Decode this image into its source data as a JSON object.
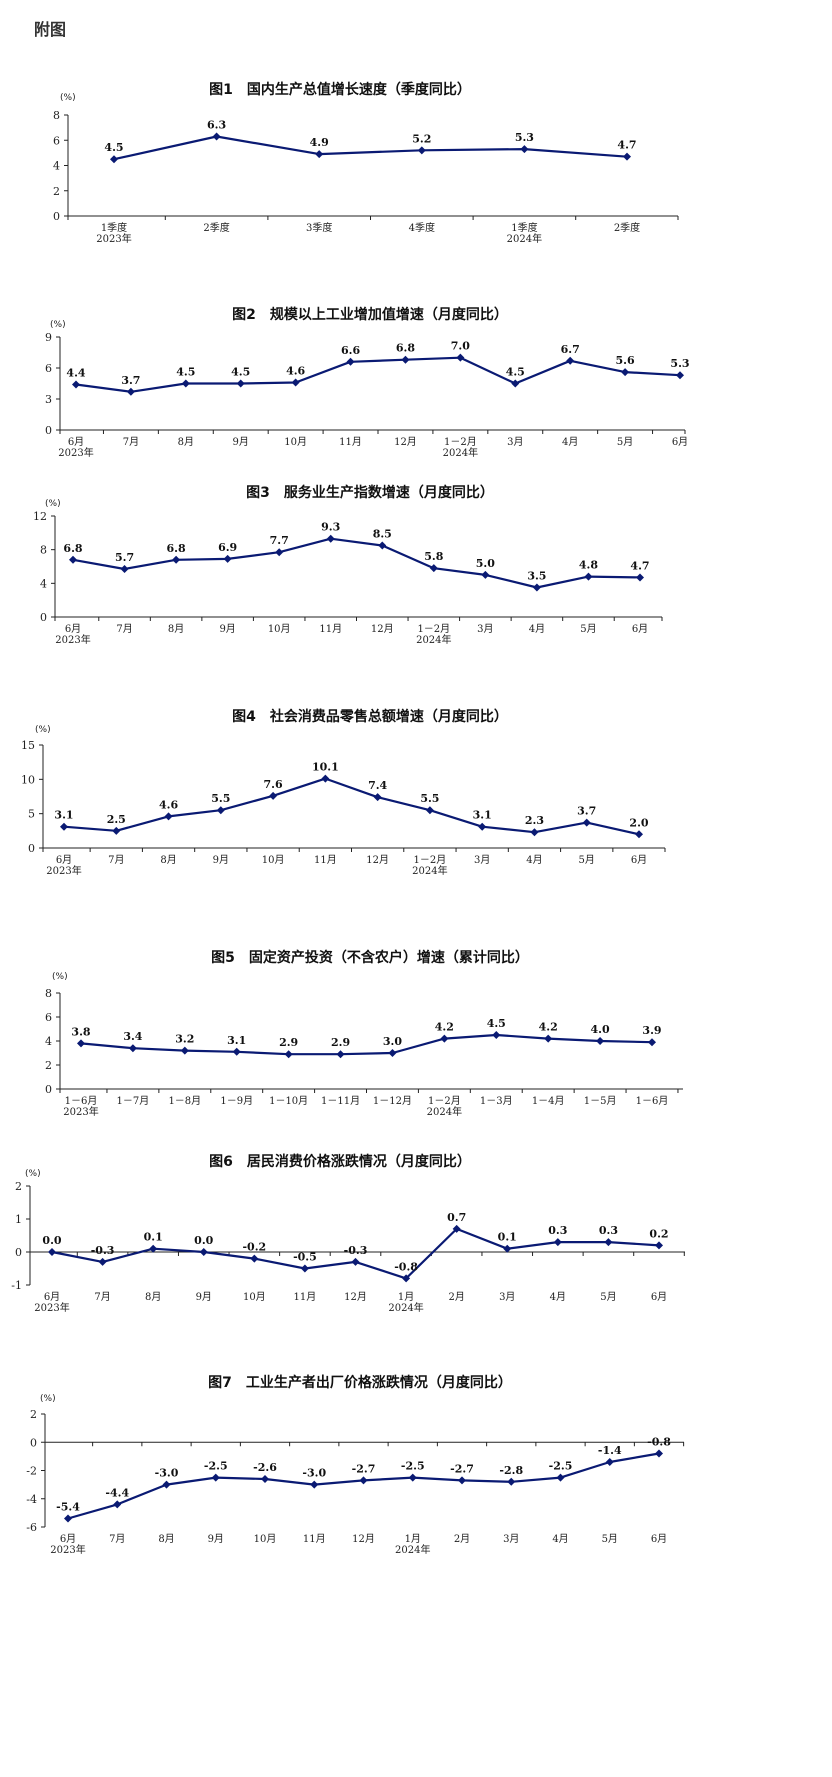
{
  "page_title": "附图",
  "style": {
    "line_color": "#0a1a73",
    "axis_color": "#222222"
  },
  "chart_data": [
    {
      "type": "line",
      "title": "图1　国内生产总值增长速度（季度同比）",
      "ylabel": "(%)",
      "ylim": [
        0,
        8
      ],
      "yticks": [
        0,
        2,
        4,
        6,
        8
      ],
      "categories": [
        "1季度",
        "2季度",
        "3季度",
        "4季度",
        "1季度",
        "2季度"
      ],
      "year_labels": [
        {
          "index": 0,
          "text": "2023年"
        },
        {
          "index": 4,
          "text": "2024年"
        }
      ],
      "series": [
        {
          "name": "国内生产总值增长速度",
          "values": [
            4.5,
            6.3,
            4.9,
            5.2,
            5.3,
            4.7
          ]
        }
      ]
    },
    {
      "type": "line",
      "title": "图2　规模以上工业增加值增速（月度同比）",
      "ylabel": "(%)",
      "ylim": [
        0,
        9
      ],
      "yticks": [
        0,
        3,
        6,
        9
      ],
      "categories": [
        "6月",
        "7月",
        "8月",
        "9月",
        "10月",
        "11月",
        "12月",
        "1－2月",
        "3月",
        "4月",
        "5月",
        "6月"
      ],
      "year_labels": [
        {
          "index": 0,
          "text": "2023年"
        },
        {
          "index": 7,
          "text": "2024年"
        }
      ],
      "series": [
        {
          "name": "规模以上工业增加值增速",
          "values": [
            4.4,
            3.7,
            4.5,
            4.5,
            4.6,
            6.6,
            6.8,
            7.0,
            4.5,
            6.7,
            5.6,
            5.3
          ]
        }
      ]
    },
    {
      "type": "line",
      "title": "图3　服务业生产指数增速（月度同比）",
      "ylabel": "(%)",
      "ylim": [
        0,
        12
      ],
      "yticks": [
        0,
        4,
        8,
        12
      ],
      "categories": [
        "6月",
        "7月",
        "8月",
        "9月",
        "10月",
        "11月",
        "12月",
        "1－2月",
        "3月",
        "4月",
        "5月",
        "6月"
      ],
      "year_labels": [
        {
          "index": 0,
          "text": "2023年"
        },
        {
          "index": 7,
          "text": "2024年"
        }
      ],
      "series": [
        {
          "name": "服务业生产指数增速",
          "values": [
            6.8,
            5.7,
            6.8,
            6.9,
            7.7,
            9.3,
            8.5,
            5.8,
            5.0,
            3.5,
            4.8,
            4.7
          ]
        }
      ]
    },
    {
      "type": "line",
      "title": "图4　社会消费品零售总额增速（月度同比）",
      "ylabel": "(%)",
      "ylim": [
        0,
        15
      ],
      "yticks": [
        0,
        5,
        10,
        15
      ],
      "categories": [
        "6月",
        "7月",
        "8月",
        "9月",
        "10月",
        "11月",
        "12月",
        "1－2月",
        "3月",
        "4月",
        "5月",
        "6月"
      ],
      "year_labels": [
        {
          "index": 0,
          "text": "2023年"
        },
        {
          "index": 7,
          "text": "2024年"
        }
      ],
      "series": [
        {
          "name": "社会消费品零售总额增速",
          "values": [
            3.1,
            2.5,
            4.6,
            5.5,
            7.6,
            10.1,
            7.4,
            5.5,
            3.1,
            2.3,
            3.7,
            2.0
          ]
        }
      ]
    },
    {
      "type": "line",
      "title": "图5　固定资产投资（不含农户）增速（累计同比）",
      "ylabel": "(%)",
      "ylim": [
        0,
        8
      ],
      "yticks": [
        0,
        2,
        4,
        6,
        8
      ],
      "categories": [
        "1－6月",
        "1－7月",
        "1－8月",
        "1－9月",
        "1－10月",
        "1－11月",
        "1－12月",
        "1－2月",
        "1－3月",
        "1－4月",
        "1－5月",
        "1－6月"
      ],
      "year_labels": [
        {
          "index": 0,
          "text": "2023年"
        },
        {
          "index": 7,
          "text": "2024年"
        }
      ],
      "series": [
        {
          "name": "固定资产投资增速",
          "values": [
            3.8,
            3.4,
            3.2,
            3.1,
            2.9,
            2.9,
            3.0,
            4.2,
            4.5,
            4.2,
            4.0,
            3.9
          ]
        }
      ]
    },
    {
      "type": "line",
      "title": "图6　居民消费价格涨跌情况（月度同比）",
      "ylabel": "(%)",
      "ylim": [
        -1,
        2
      ],
      "yticks": [
        -1,
        0,
        1,
        2
      ],
      "categories": [
        "6月",
        "7月",
        "8月",
        "9月",
        "10月",
        "11月",
        "12月",
        "1月",
        "2月",
        "3月",
        "4月",
        "5月",
        "6月"
      ],
      "year_labels": [
        {
          "index": 0,
          "text": "2023年"
        },
        {
          "index": 7,
          "text": "2024年"
        }
      ],
      "series": [
        {
          "name": "居民消费价格涨跌",
          "values": [
            0.0,
            -0.3,
            0.1,
            0.0,
            -0.2,
            -0.5,
            -0.3,
            -0.8,
            0.7,
            0.1,
            0.3,
            0.3,
            0.2
          ]
        }
      ]
    },
    {
      "type": "line",
      "title": "图7　工业生产者出厂价格涨跌情况（月度同比）",
      "ylabel": "(%)",
      "ylim": [
        -6,
        2
      ],
      "yticks": [
        -6,
        -4,
        -2,
        0,
        2
      ],
      "categories": [
        "6月",
        "7月",
        "8月",
        "9月",
        "10月",
        "11月",
        "12月",
        "1月",
        "2月",
        "3月",
        "4月",
        "5月",
        "6月"
      ],
      "year_labels": [
        {
          "index": 0,
          "text": "2023年"
        },
        {
          "index": 7,
          "text": "2024年"
        }
      ],
      "series": [
        {
          "name": "工业生产者出厂价格涨跌",
          "values": [
            -5.4,
            -4.4,
            -3.0,
            -2.5,
            -2.6,
            -3.0,
            -2.7,
            -2.5,
            -2.7,
            -2.8,
            -2.5,
            -1.4,
            -0.8
          ]
        }
      ]
    }
  ]
}
